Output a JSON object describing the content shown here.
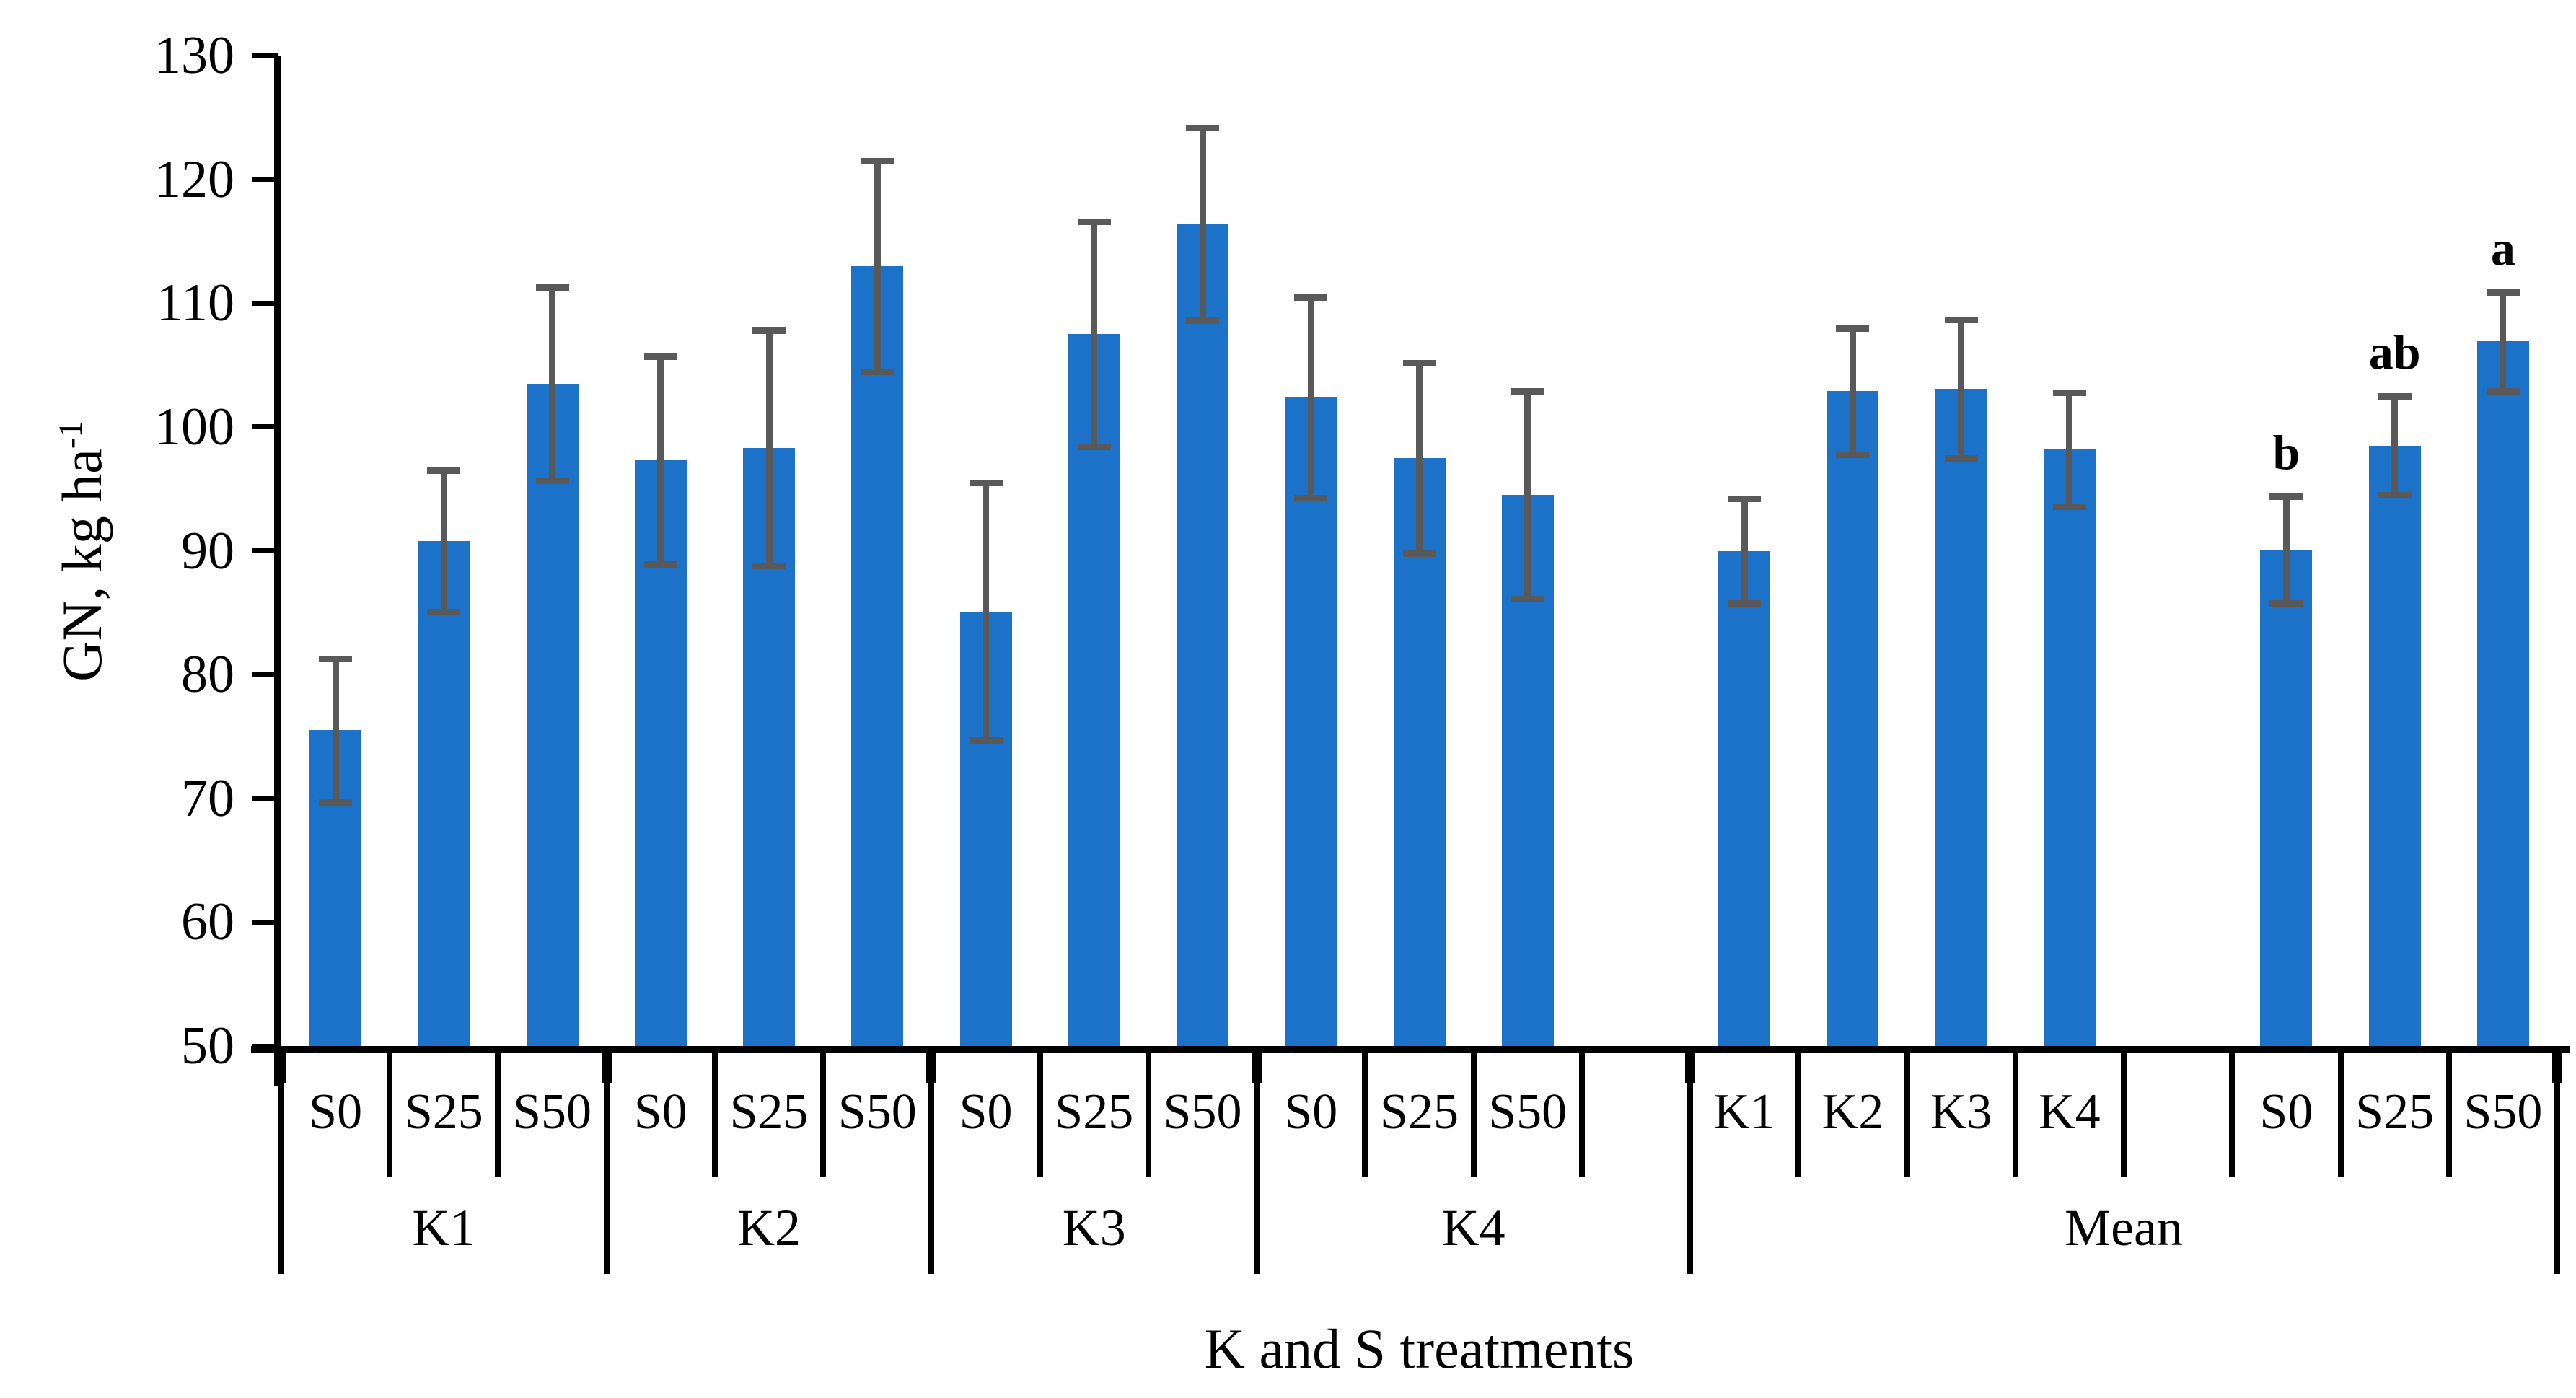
{
  "chart_data": {
    "type": "bar",
    "title": "",
    "xlabel": "K and S treatments",
    "ylabel": "GN, kg ha⁻¹",
    "ylabel_parts": {
      "base": "GN, kg ha",
      "sup": "-1"
    },
    "ylim": [
      50,
      130
    ],
    "yticks": [
      130,
      120,
      110,
      100,
      90,
      80,
      70,
      60,
      50
    ],
    "grid": false,
    "legend_position": "none",
    "bar_color": "#1b72c8",
    "error_bar_color": "#595959",
    "axis_color": "#000000",
    "groups": [
      {
        "label": "K1",
        "cells": [
          {
            "label": "S0",
            "value": 75.5,
            "error": 5.8
          },
          {
            "label": "S25",
            "value": 90.8,
            "error": 5.7
          },
          {
            "label": "S50",
            "value": 103.5,
            "error": 7.8
          }
        ]
      },
      {
        "label": "K2",
        "cells": [
          {
            "label": "S0",
            "value": 97.3,
            "error": 8.4
          },
          {
            "label": "S25",
            "value": 98.3,
            "error": 9.5
          },
          {
            "label": "S50",
            "value": 113.0,
            "error": 8.5
          }
        ]
      },
      {
        "label": "K3",
        "cells": [
          {
            "label": "S0",
            "value": 85.1,
            "error": 10.4
          },
          {
            "label": "S25",
            "value": 107.5,
            "error": 9.1
          },
          {
            "label": "S50",
            "value": 116.4,
            "error": 7.8
          }
        ]
      },
      {
        "label": "K4",
        "cells": [
          {
            "label": "S0",
            "value": 102.4,
            "error": 8.1
          },
          {
            "label": "S25",
            "value": 97.5,
            "error": 7.7
          },
          {
            "label": "S50",
            "value": 94.5,
            "error": 8.4
          },
          {
            "label": "",
            "value": null,
            "error": null
          }
        ]
      },
      {
        "label": "Mean",
        "cells": [
          {
            "label": "K1",
            "value": 90.0,
            "error": 4.2
          },
          {
            "label": "K2",
            "value": 102.9,
            "error": 5.1
          },
          {
            "label": "K3",
            "value": 103.1,
            "error": 5.6
          },
          {
            "label": "K4",
            "value": 98.2,
            "error": 4.6
          },
          {
            "label": "",
            "value": null,
            "error": null
          },
          {
            "label": "S0",
            "value": 90.1,
            "error": 4.3,
            "letter": "b"
          },
          {
            "label": "S25",
            "value": 98.5,
            "error": 4.0,
            "letter": "ab"
          },
          {
            "label": "S50",
            "value": 106.9,
            "error": 4.0,
            "letter": "a"
          }
        ]
      }
    ]
  }
}
